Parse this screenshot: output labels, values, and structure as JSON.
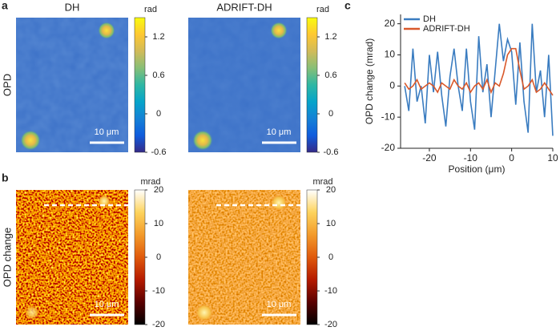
{
  "panels": {
    "a": {
      "label": "a",
      "row_label": "OPD",
      "images": [
        {
          "title": "DH",
          "scale_bar": "10 μm"
        },
        {
          "title": "ADRIFT-DH",
          "scale_bar": "10 μm"
        }
      ],
      "colorbar": {
        "unit": "rad",
        "lim": [
          -0.6,
          1.5
        ],
        "ticks": [
          -0.6,
          0,
          0.6,
          1.2
        ],
        "colors": [
          "#352a87",
          "#0f5cdd",
          "#1481d6",
          "#06a4ca",
          "#2eb7a4",
          "#87bf77",
          "#d1bb59",
          "#fec832",
          "#f9fb0e"
        ]
      }
    },
    "b": {
      "label": "b",
      "row_label": "OPD change",
      "images": [
        {
          "scale_bar": "10 μm"
        },
        {
          "scale_bar": "10 μm"
        }
      ],
      "colorbar": {
        "unit": "mrad",
        "lim": [
          -20,
          20
        ],
        "ticks": [
          -20,
          -10,
          0,
          10,
          20
        ],
        "colors": [
          "#000000",
          "#5a0000",
          "#b51a00",
          "#e05a0c",
          "#f39a2a",
          "#fdd35c",
          "#ffffff"
        ]
      }
    }
  },
  "chart_data": {
    "type": "line",
    "panel_label": "c",
    "x_label": "Position (μm)",
    "y_label": "OPD change (mrad)",
    "x": [
      -26,
      -25,
      -24,
      -23,
      -22,
      -21,
      -20,
      -19,
      -18,
      -17,
      -16,
      -15,
      -14,
      -13,
      -12,
      -11,
      -10,
      -9,
      -8,
      -7,
      -6,
      -5,
      -4,
      -3,
      -2,
      -1,
      0,
      1,
      2,
      3,
      4,
      5,
      6,
      7,
      8,
      9,
      10
    ],
    "series": [
      {
        "name": "DH",
        "color": "#3a7cc0",
        "values": [
          0,
          -8,
          12,
          -5,
          0,
          -12,
          10,
          -2,
          11,
          -3,
          -13,
          3,
          12,
          0,
          -8,
          12,
          -5,
          -14,
          16,
          -2,
          7,
          -10,
          5,
          20,
          8,
          15,
          11,
          -6,
          14,
          -5,
          -15,
          20,
          -2,
          5,
          -10,
          10,
          -16
        ]
      },
      {
        "name": "ADRIFT-DH",
        "color": "#d9582a",
        "values": [
          1,
          -1,
          0,
          2,
          -1,
          0,
          1,
          0,
          -2,
          1,
          0,
          -1,
          2,
          0,
          -1,
          1,
          -2,
          0,
          1,
          -1,
          2,
          -2,
          1,
          0,
          4,
          10,
          12,
          12,
          5,
          -1,
          0,
          2,
          -2,
          -1,
          1,
          -1,
          -3
        ]
      }
    ],
    "xlim": [
      -27,
      10
    ],
    "ylim": [
      -20,
      23
    ],
    "xticks": [
      -20,
      -10,
      0,
      10
    ],
    "yticks": [
      -20,
      -10,
      0,
      10,
      20
    ]
  }
}
